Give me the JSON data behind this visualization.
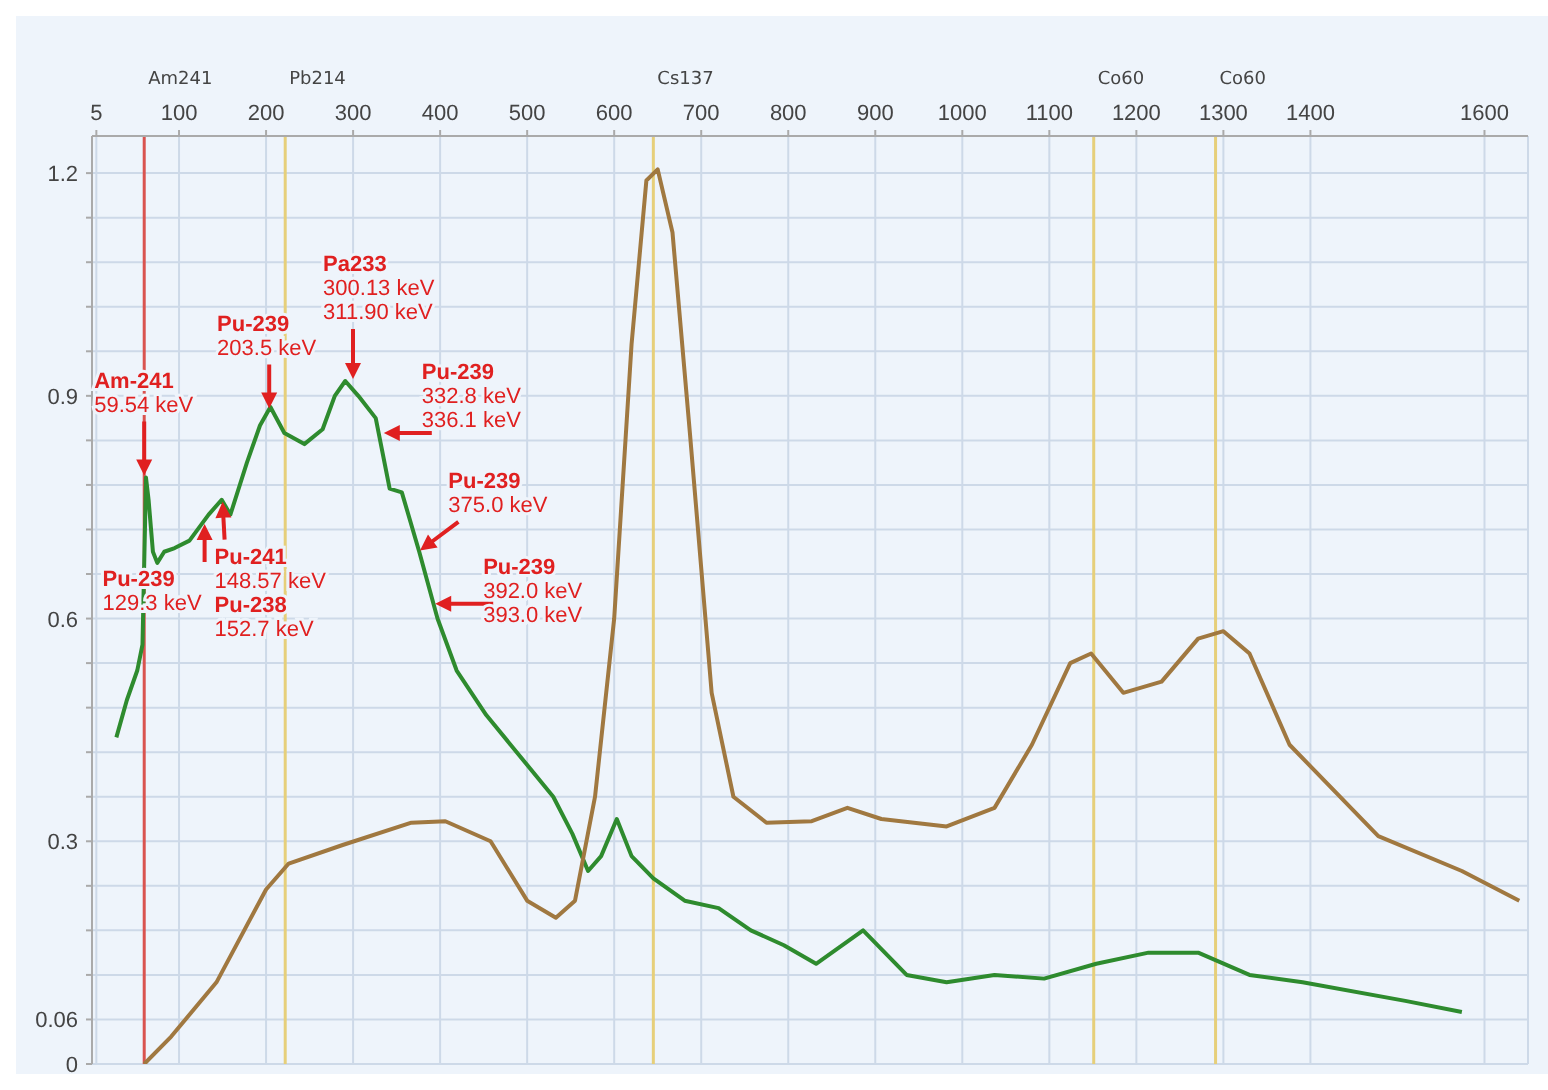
{
  "chart_data": {
    "type": "line",
    "xlim": [
      0,
      1650
    ],
    "xticks": [
      5,
      100,
      200,
      300,
      400,
      500,
      600,
      700,
      800,
      900,
      1000,
      1100,
      1200,
      1300,
      1400,
      1600
    ],
    "ylim": [
      0,
      1.25
    ],
    "yticks": [
      0,
      0.06,
      {
        "value": 0.12,
        "label": null
      },
      {
        "value": 0.18,
        "label": null
      },
      {
        "value": 0.24,
        "label": null
      },
      0.3,
      {
        "value": 0.36,
        "label": null
      },
      {
        "value": 0.42,
        "label": null
      },
      {
        "value": 0.48,
        "label": null
      },
      {
        "value": 0.54,
        "label": null
      },
      0.6,
      {
        "value": 0.66,
        "label": null
      },
      {
        "value": 0.72,
        "label": null
      },
      {
        "value": 0.78,
        "label": null
      },
      {
        "value": 0.84,
        "label": null
      },
      0.9,
      {
        "value": 0.96,
        "label": null
      },
      {
        "value": 1.02,
        "label": null
      },
      {
        "value": 1.08,
        "label": null
      },
      {
        "value": 1.14,
        "label": null
      },
      1.2
    ],
    "grid": true,
    "marker": "none",
    "line_style": "solid",
    "series": [
      {
        "color": "#2e8b2e",
        "x": [
          28,
          40,
          52,
          58,
          61,
          62,
          65,
          70,
          75,
          83,
          95,
          112,
          134,
          149,
          159,
          178,
          193,
          205,
          221,
          244,
          265,
          279,
          291,
          306,
          326,
          342,
          356,
          376,
          397,
          419,
          453,
          488,
          530,
          552,
          570,
          585,
          603,
          620,
          645,
          681,
          720,
          757,
          795,
          832,
          886,
          911,
          936,
          982,
          1037,
          1094,
          1154,
          1214,
          1271,
          1330,
          1391,
          1509,
          1574
        ],
        "values": [
          0.44,
          0.49,
          0.53,
          0.565,
          0.73,
          0.79,
          0.76,
          0.69,
          0.675,
          0.69,
          0.695,
          0.705,
          0.74,
          0.76,
          0.74,
          0.81,
          0.86,
          0.885,
          0.85,
          0.835,
          0.855,
          0.9,
          0.92,
          0.9,
          0.87,
          0.775,
          0.77,
          0.69,
          0.6,
          0.53,
          0.47,
          0.42,
          0.36,
          0.31,
          0.26,
          0.28,
          0.33,
          0.28,
          0.25,
          0.22,
          0.21,
          0.18,
          0.16,
          0.135,
          0.18,
          0.15,
          0.12,
          0.11,
          0.12,
          0.115,
          0.135,
          0.15,
          0.15,
          0.12,
          0.11,
          0.085,
          0.07
        ]
      },
      {
        "color": "#a07840",
        "x": [
          60,
          91,
          143,
          200,
          226,
          288,
          367,
          406,
          458,
          500,
          533,
          555,
          578,
          600,
          620,
          637,
          650,
          667,
          687,
          712,
          737,
          775,
          827,
          868,
          907,
          982,
          1037,
          1080,
          1124,
          1148,
          1185,
          1229,
          1271,
          1300,
          1330,
          1376,
          1478,
          1574,
          1640
        ],
        "values": [
          0,
          0.037,
          0.11,
          0.235,
          0.27,
          0.295,
          0.325,
          0.327,
          0.3,
          0.22,
          0.197,
          0.22,
          0.36,
          0.6,
          0.97,
          1.19,
          1.205,
          1.12,
          0.85,
          0.5,
          0.36,
          0.325,
          0.327,
          0.345,
          0.33,
          0.32,
          0.345,
          0.43,
          0.54,
          0.553,
          0.5,
          0.515,
          0.573,
          0.583,
          0.553,
          0.43,
          0.307,
          0.26,
          0.22
        ]
      }
    ],
    "ref_lines": [
      {
        "axis": "x",
        "value": 60,
        "label": "Am241",
        "color": "#d9534f"
      },
      {
        "axis": "x",
        "value": 222,
        "label": "Pb214",
        "color": "#e6cf7a"
      },
      {
        "axis": "x",
        "value": 645,
        "label": "Cs137",
        "color": "#e6cf7a"
      },
      {
        "axis": "x",
        "value": 1151,
        "label": "Co60",
        "color": "#e6cf7a"
      },
      {
        "axis": "x",
        "value": 1291,
        "label": "Co60",
        "color": "#e6cf7a"
      }
    ],
    "annotations": [
      {
        "text": "Am-241\n59.54 keV",
        "x": 60,
        "y": 0.79
      },
      {
        "text": "Pu-239\n129.3 keV",
        "x": 129.3,
        "y": 0.73
      },
      {
        "text": "Pu-241\n148.57 keV\nPu-238\n152.7 keV",
        "x": 150,
        "y": 0.76
      },
      {
        "text": "Pu-239\n203.5 keV",
        "x": 203.5,
        "y": 0.88
      },
      {
        "text": "Pa233\n300.13 keV\n311.90 keV",
        "x": 300,
        "y": 0.92
      },
      {
        "text": "Pu-239\n332.8 keV\n336.1 keV",
        "x": 333,
        "y": 0.85
      },
      {
        "text": "Pu-239\n375.0 keV",
        "x": 375,
        "y": 0.69
      },
      {
        "text": "Pu-239\n392.0 keV\n393.0 keV",
        "x": 392,
        "y": 0.62
      }
    ]
  }
}
